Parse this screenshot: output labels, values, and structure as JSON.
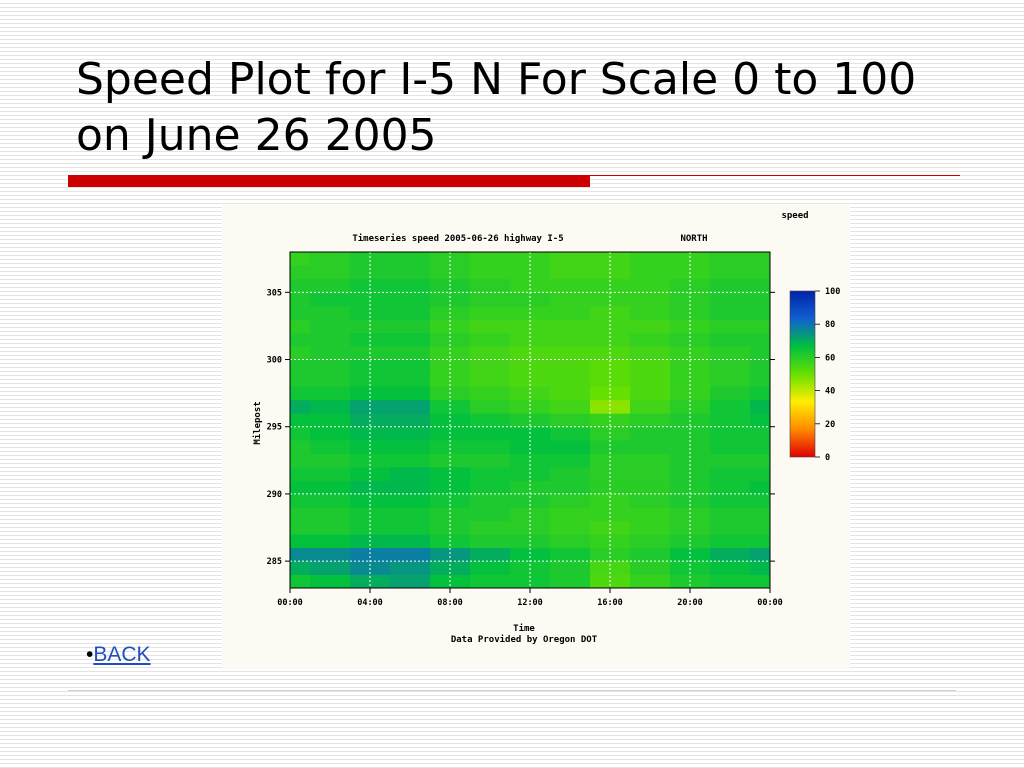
{
  "slide": {
    "title": "Speed Plot for I-5 N For Scale 0 to 100 on June 26 2005",
    "back_label": "BACK",
    "bullet": "•"
  },
  "colors": {
    "accent_red": "#cc0000",
    "rule_gray": "#cfcfcf"
  },
  "chart_data": {
    "type": "heatmap",
    "title": "Timeseries speed 2005-06-26 highway I-5",
    "direction_label": "NORTH",
    "corner_label": "speed",
    "xlabel": "Time",
    "ylabel": "Milepost",
    "footnote": "Data Provided by Oregon DOT",
    "x_ticks": [
      "00:00",
      "04:00",
      "08:00",
      "12:00",
      "16:00",
      "20:00",
      "00:00"
    ],
    "x_range_hours": [
      0,
      24
    ],
    "y_ticks": [
      285,
      290,
      295,
      300,
      305
    ],
    "y_range": [
      283,
      308
    ],
    "grid": true,
    "colorbar": {
      "ticks": [
        100,
        80,
        60,
        40,
        20,
        0
      ],
      "range": [
        0,
        100
      ],
      "stops": [
        "#e00000",
        "#ff8a00",
        "#ffee00",
        "#66e000",
        "#00c040",
        "#1060d0",
        "#0022aa"
      ]
    },
    "mileposts": [
      283.5,
      284.5,
      285.5,
      286.5,
      287.5,
      288.5,
      289.5,
      290.5,
      291.5,
      292.5,
      293.5,
      294.5,
      295.5,
      296.5,
      297.5,
      298.5,
      299.5,
      300.5,
      301.5,
      302.5,
      303.5,
      304.5,
      305.5,
      306.5,
      307.5
    ],
    "hours": [
      0,
      2,
      4,
      6,
      8,
      10,
      12,
      14,
      16,
      18,
      20,
      22,
      24
    ],
    "speeds": [
      [
        64,
        66,
        70,
        72,
        66,
        64,
        64,
        62,
        54,
        58,
        62,
        64,
        64
      ],
      [
        70,
        72,
        76,
        74,
        70,
        66,
        64,
        62,
        55,
        60,
        64,
        66,
        68
      ],
      [
        76,
        76,
        78,
        78,
        74,
        70,
        66,
        64,
        60,
        62,
        66,
        70,
        72
      ],
      [
        66,
        66,
        68,
        68,
        64,
        62,
        62,
        60,
        58,
        60,
        62,
        64,
        64
      ],
      [
        62,
        62,
        64,
        64,
        62,
        60,
        60,
        58,
        56,
        58,
        60,
        62,
        62
      ],
      [
        62,
        62,
        64,
        64,
        62,
        62,
        60,
        58,
        58,
        58,
        60,
        62,
        62
      ],
      [
        64,
        64,
        66,
        66,
        64,
        62,
        62,
        60,
        58,
        60,
        62,
        64,
        64
      ],
      [
        66,
        66,
        68,
        68,
        66,
        64,
        62,
        62,
        60,
        60,
        62,
        64,
        66
      ],
      [
        64,
        64,
        66,
        68,
        66,
        64,
        64,
        62,
        60,
        60,
        62,
        64,
        64
      ],
      [
        62,
        62,
        64,
        64,
        62,
        62,
        64,
        64,
        60,
        60,
        62,
        62,
        62
      ],
      [
        62,
        64,
        66,
        66,
        64,
        64,
        66,
        66,
        62,
        62,
        62,
        64,
        64
      ],
      [
        64,
        66,
        68,
        68,
        66,
        66,
        66,
        64,
        60,
        62,
        62,
        64,
        64
      ],
      [
        66,
        66,
        70,
        70,
        66,
        64,
        62,
        60,
        58,
        60,
        62,
        64,
        66
      ],
      [
        70,
        68,
        72,
        72,
        64,
        60,
        58,
        56,
        46,
        56,
        60,
        64,
        68
      ],
      [
        64,
        64,
        66,
        66,
        60,
        58,
        56,
        54,
        50,
        54,
        58,
        62,
        64
      ],
      [
        62,
        62,
        64,
        64,
        58,
        56,
        54,
        54,
        52,
        54,
        58,
        60,
        62
      ],
      [
        62,
        62,
        64,
        64,
        58,
        56,
        54,
        54,
        52,
        54,
        58,
        60,
        62
      ],
      [
        60,
        62,
        62,
        62,
        58,
        56,
        54,
        54,
        54,
        56,
        58,
        60,
        62
      ],
      [
        62,
        62,
        64,
        64,
        60,
        58,
        56,
        56,
        56,
        58,
        60,
        62,
        62
      ],
      [
        60,
        62,
        62,
        62,
        58,
        56,
        56,
        56,
        56,
        56,
        58,
        60,
        60
      ],
      [
        62,
        62,
        64,
        64,
        60,
        58,
        58,
        58,
        56,
        58,
        60,
        62,
        62
      ],
      [
        62,
        64,
        64,
        64,
        62,
        60,
        60,
        58,
        58,
        58,
        60,
        62,
        62
      ],
      [
        62,
        62,
        64,
        64,
        62,
        60,
        58,
        58,
        58,
        58,
        60,
        62,
        62
      ],
      [
        60,
        60,
        62,
        62,
        60,
        58,
        58,
        56,
        56,
        58,
        58,
        60,
        60
      ],
      [
        58,
        60,
        62,
        62,
        60,
        58,
        58,
        56,
        56,
        58,
        58,
        60,
        60
      ]
    ]
  }
}
